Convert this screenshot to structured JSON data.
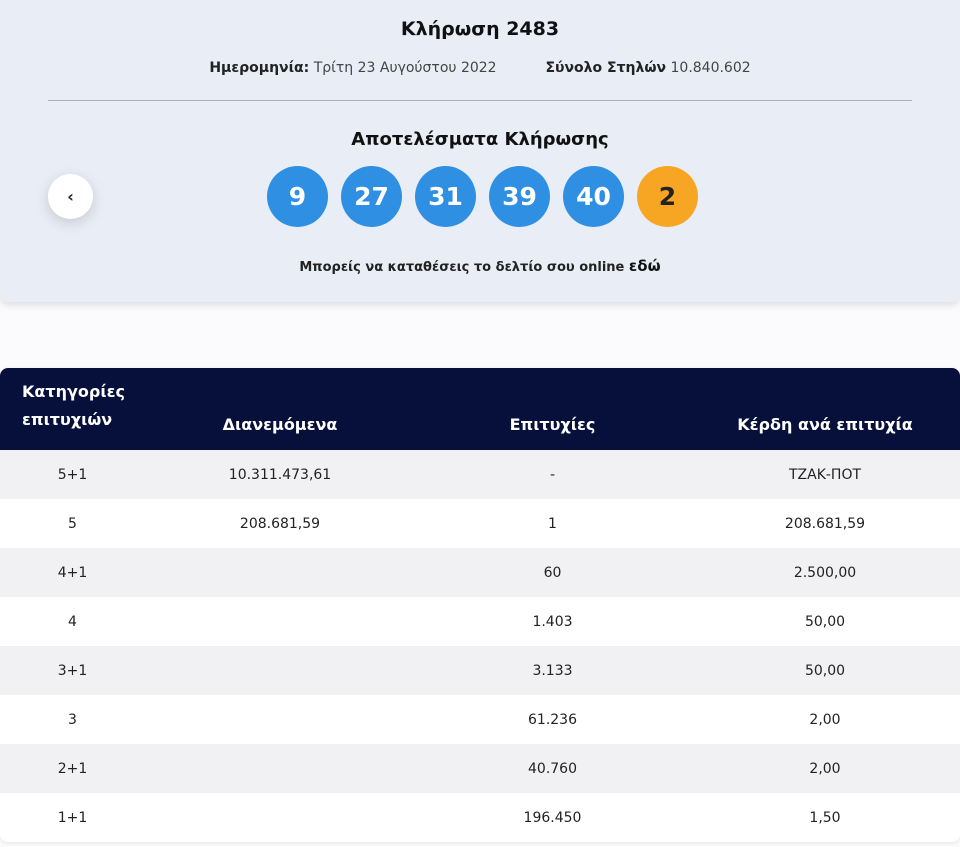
{
  "draw": {
    "title": "Κλήρωση 2483",
    "date_label": "Ημερομηνία:",
    "date_value": "Τρίτη 23 Αυγούστου 2022",
    "columns_label": "Σύνολο Στηλών",
    "columns_value": "10.840.602"
  },
  "results": {
    "title": "Αποτελέσματα Κλήρωσης",
    "numbers": [
      "9",
      "27",
      "31",
      "39",
      "40"
    ],
    "bonus": "2",
    "prev_icon": "chevron-left",
    "online_text": "Μπορείς να καταθέσεις το δελτίο σου online",
    "online_link": "εδώ"
  },
  "colors": {
    "header": "#06103a",
    "ball": "#2e8fe3",
    "bonus": "#f6a623"
  },
  "table": {
    "headers": [
      "Κατηγορίες επιτυχιών",
      "Διανεμόμενα",
      "Επιτυχίες",
      "Κέρδη ανά επιτυχία"
    ],
    "rows": [
      [
        "5+1",
        "10.311.473,61",
        "-",
        "ΤΖΑΚ-ΠΟΤ"
      ],
      [
        "5",
        "208.681,59",
        "1",
        "208.681,59"
      ],
      [
        "4+1",
        "",
        "60",
        "2.500,00"
      ],
      [
        "4",
        "",
        "1.403",
        "50,00"
      ],
      [
        "3+1",
        "",
        "3.133",
        "50,00"
      ],
      [
        "3",
        "",
        "61.236",
        "2,00"
      ],
      [
        "2+1",
        "",
        "40.760",
        "2,00"
      ],
      [
        "1+1",
        "",
        "196.450",
        "1,50"
      ]
    ]
  }
}
